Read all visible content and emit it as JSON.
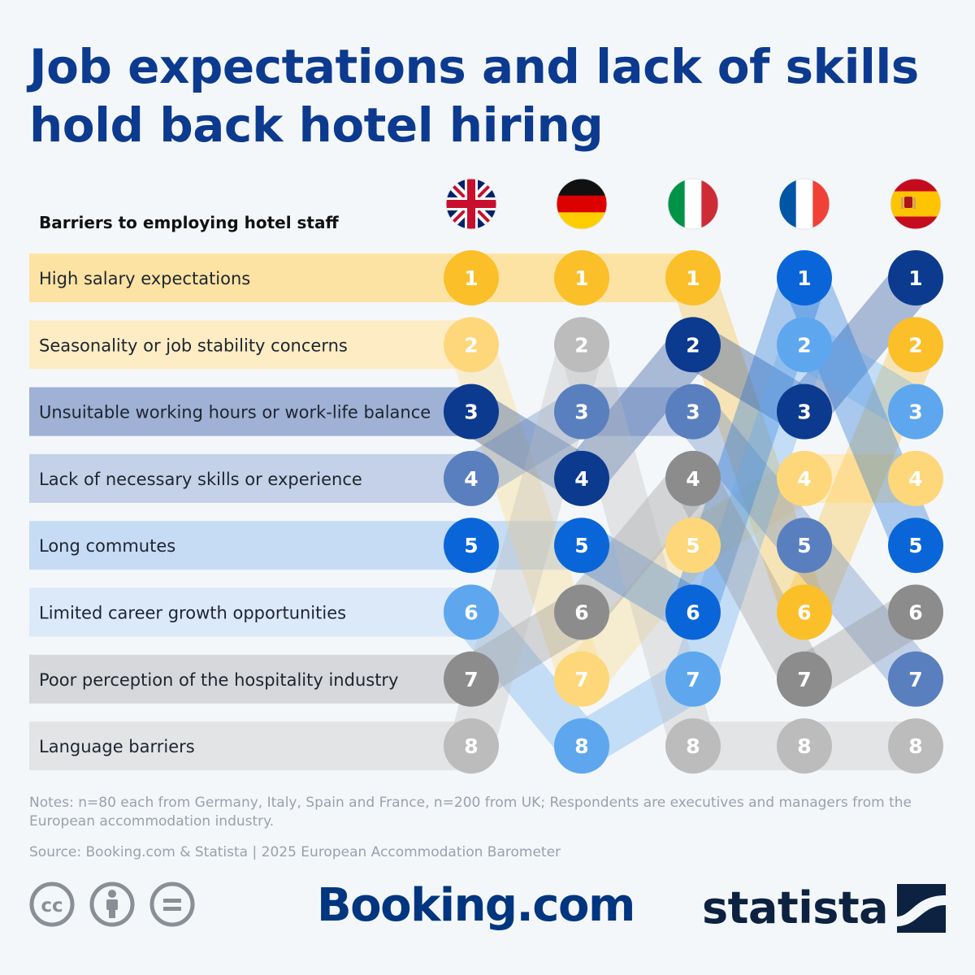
{
  "title": "Job expectations and lack of skills hold back hotel hiring",
  "subtitle": "Barriers to employing hotel staff",
  "chart_data": {
    "type": "table",
    "countries": [
      {
        "name": "UK",
        "flag": "uk-flag-icon"
      },
      {
        "name": "Germany",
        "flag": "germany-flag-icon"
      },
      {
        "name": "Italy",
        "flag": "italy-flag-icon"
      },
      {
        "name": "France",
        "flag": "france-flag-icon"
      },
      {
        "name": "Spain",
        "flag": "spain-flag-icon"
      }
    ],
    "barriers": [
      {
        "label": "High salary expectations",
        "color": "#fbbf2a",
        "bar_color": "#fde3a3",
        "ranks": [
          1,
          1,
          1,
          6,
          2
        ]
      },
      {
        "label": "Seasonality or job stability concerns",
        "color": "#fdd77a",
        "bar_color": "#fdecc4",
        "ranks": [
          2,
          7,
          5,
          4,
          4
        ]
      },
      {
        "label": "Unsuitable working hours or work-life balance",
        "color": "#0c3a8f",
        "bar_color": "#9fb1d4",
        "ranks": [
          3,
          4,
          2,
          3,
          1
        ]
      },
      {
        "label": "Lack of necessary skills or experience",
        "color": "#5a7fbf",
        "bar_color": "#c4d1e8",
        "ranks": [
          4,
          3,
          3,
          5,
          7
        ]
      },
      {
        "label": "Long commutes",
        "color": "#0a66d8",
        "bar_color": "#c6dcf5",
        "ranks": [
          5,
          5,
          6,
          1,
          5
        ]
      },
      {
        "label": "Limited career growth opportunities",
        "color": "#5ea7ef",
        "bar_color": "#dbe9f9",
        "ranks": [
          6,
          8,
          7,
          2,
          3
        ]
      },
      {
        "label": "Poor perception of the hospitality industry",
        "color": "#8c8c8c",
        "bar_color": "#d6d8db",
        "ranks": [
          7,
          6,
          4,
          7,
          6
        ]
      },
      {
        "label": "Language barriers",
        "color": "#bcbcbc",
        "bar_color": "#e3e4e6",
        "ranks": [
          8,
          2,
          8,
          8,
          8
        ]
      }
    ]
  },
  "notes": "Notes: n=80 each from Germany, Italy, Spain and France, n=200 from UK; Respondents are executives and managers from the European accommodation industry.",
  "source": "Source: Booking.com & Statista | 2025 European Accommodation Barometer",
  "branding": {
    "booking": "Booking.com",
    "statista": "statista"
  },
  "license_icons": [
    "cc-icon",
    "attribution-icon",
    "no-derivatives-icon"
  ]
}
